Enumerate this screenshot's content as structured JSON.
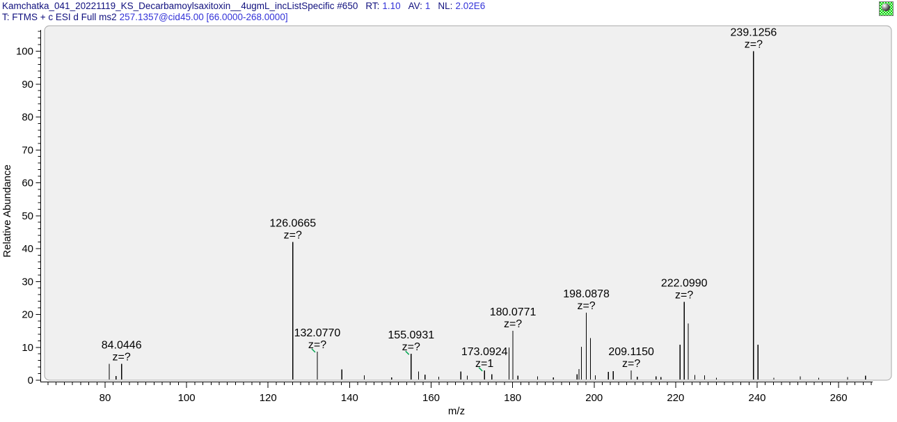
{
  "header": {
    "line1": {
      "filename": "Kamchatka_041_20221119_KS_Decarbamoylsaxitoxin__4ugmL_incListSpecific #650",
      "rt_label": "RT:",
      "rt_value": "1.10",
      "av_label": "AV:",
      "av_value": "1",
      "nl_label": "NL:",
      "nl_value": "2.02E6"
    },
    "line2": {
      "prefix": "T: FTMS + c ESI d Full ms2",
      "value": "257.1357@cid45.00 [66.0000-268.0000]"
    },
    "pin_icon": "green-checker-pushpin"
  },
  "colors": {
    "header_dark": "#10107e",
    "header_value": "#3232d8",
    "plot_bg": "#f0f0f0",
    "plot_border": "#a8a8a8",
    "axis": "#000000",
    "peak": "#000000",
    "charge_flag_green": "#00a550",
    "icon_green": "#0ad10a"
  },
  "chart_data": {
    "type": "bar",
    "subtype": "centroid-mass-spectrum",
    "title": "",
    "xlabel": "m/z",
    "ylabel": "Relative Abundance",
    "xlim": [
      66,
      268
    ],
    "ylim": [
      0,
      100
    ],
    "x_major_ticks": [
      80,
      100,
      120,
      140,
      160,
      180,
      200,
      220,
      240,
      260
    ],
    "x_minor_step": 2,
    "y_major_ticks": [
      0,
      10,
      20,
      30,
      40,
      50,
      60,
      70,
      80,
      90,
      100
    ],
    "y_minor_step": 2,
    "grid": false,
    "legend": null,
    "peaks": [
      {
        "mz": 81.04,
        "intensity": 5.0
      },
      {
        "mz": 82.7,
        "intensity": 1.3
      },
      {
        "mz": 84.0446,
        "intensity": 5.0,
        "label": "84.0446",
        "charge": "z=?"
      },
      {
        "mz": 126.0665,
        "intensity": 42.0,
        "label": "126.0665",
        "charge": "z=?"
      },
      {
        "mz": 132.077,
        "intensity": 8.7,
        "label": "132.0770",
        "charge": "z=?",
        "flag": true
      },
      {
        "mz": 138.1,
        "intensity": 3.3
      },
      {
        "mz": 143.6,
        "intensity": 1.5
      },
      {
        "mz": 150.3,
        "intensity": 0.8
      },
      {
        "mz": 155.0931,
        "intensity": 8.0,
        "label": "155.0931",
        "charge": "z=?",
        "flag": true
      },
      {
        "mz": 156.9,
        "intensity": 2.6
      },
      {
        "mz": 158.5,
        "intensity": 1.7
      },
      {
        "mz": 161.9,
        "intensity": 1.1
      },
      {
        "mz": 167.3,
        "intensity": 2.6
      },
      {
        "mz": 168.9,
        "intensity": 1.4
      },
      {
        "mz": 173.0924,
        "intensity": 3.0,
        "label": "173.0924",
        "charge": "z=1",
        "flag": true
      },
      {
        "mz": 174.9,
        "intensity": 1.8
      },
      {
        "mz": 179.1,
        "intensity": 10.0
      },
      {
        "mz": 180.0771,
        "intensity": 15.0,
        "label": "180.0771",
        "charge": "z=?"
      },
      {
        "mz": 181.3,
        "intensity": 1.4
      },
      {
        "mz": 186.1,
        "intensity": 1.2
      },
      {
        "mz": 190.0,
        "intensity": 0.8
      },
      {
        "mz": 195.8,
        "intensity": 1.8
      },
      {
        "mz": 196.3,
        "intensity": 3.4
      },
      {
        "mz": 196.9,
        "intensity": 10.2
      },
      {
        "mz": 198.0878,
        "intensity": 20.5,
        "label": "198.0878",
        "charge": "z=?"
      },
      {
        "mz": 199.1,
        "intensity": 12.8
      },
      {
        "mz": 200.3,
        "intensity": 1.5
      },
      {
        "mz": 203.5,
        "intensity": 2.5
      },
      {
        "mz": 204.7,
        "intensity": 2.7
      },
      {
        "mz": 209.115,
        "intensity": 3.0,
        "label": "209.1150",
        "charge": "z=?"
      },
      {
        "mz": 210.6,
        "intensity": 1.1
      },
      {
        "mz": 215.2,
        "intensity": 1.2
      },
      {
        "mz": 216.4,
        "intensity": 0.9
      },
      {
        "mz": 221.1,
        "intensity": 10.8
      },
      {
        "mz": 222.099,
        "intensity": 23.8,
        "label": "222.0990",
        "charge": "z=?"
      },
      {
        "mz": 223.1,
        "intensity": 17.3
      },
      {
        "mz": 224.7,
        "intensity": 1.6
      },
      {
        "mz": 227.1,
        "intensity": 1.5
      },
      {
        "mz": 230.0,
        "intensity": 0.7
      },
      {
        "mz": 239.1256,
        "intensity": 100.0,
        "label": "239.1256",
        "charge": "z=?",
        "main": true
      },
      {
        "mz": 240.2,
        "intensity": 10.8
      },
      {
        "mz": 244.1,
        "intensity": 0.7
      },
      {
        "mz": 250.6,
        "intensity": 1.2
      },
      {
        "mz": 255.1,
        "intensity": 0.7
      },
      {
        "mz": 262.2,
        "intensity": 0.9
      },
      {
        "mz": 266.6,
        "intensity": 1.4
      }
    ]
  }
}
